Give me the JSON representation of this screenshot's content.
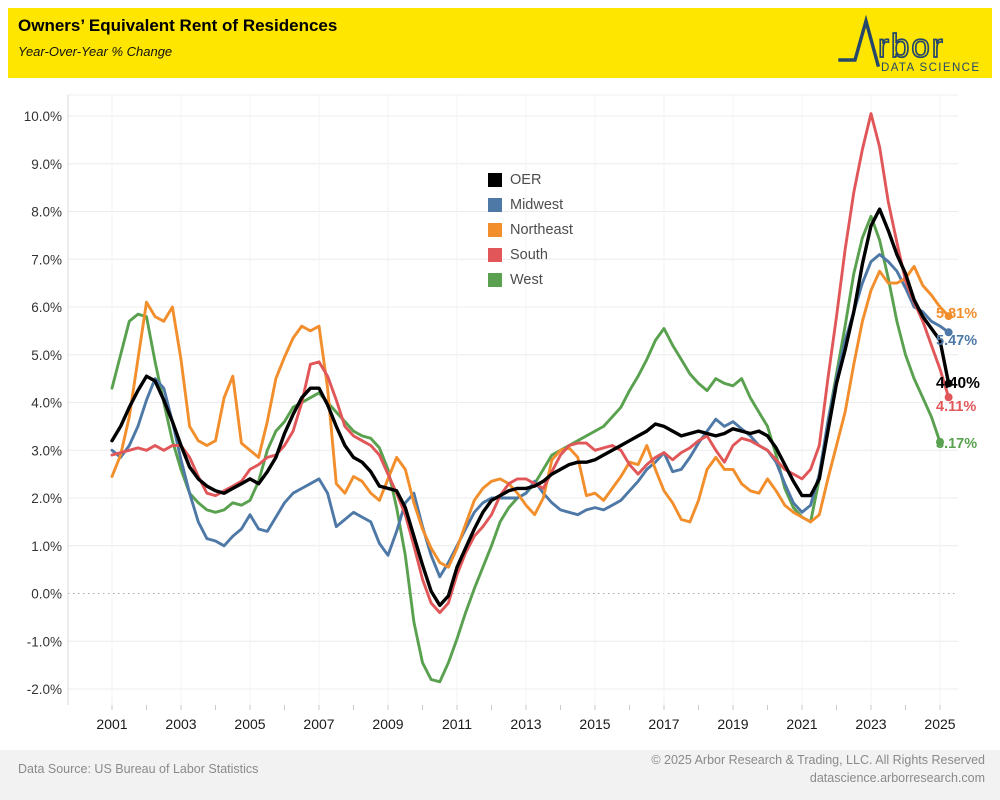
{
  "header": {
    "title": "Owners’ Equivalent Rent of Residences",
    "subtitle": "Year-Over-Year % Change"
  },
  "logo": {
    "word": "rbor",
    "tagline": "DATA SCIENCE",
    "navy": "#24476B",
    "banner_yellow": "#FFE600"
  },
  "footer": {
    "source": "Data Source: US Bureau of Labor Statistics",
    "copyright": "© 2025 Arbor Research & Trading, LLC. All Rights Reserved",
    "website": "datascience.arborresearch.com"
  },
  "chart_data": {
    "type": "line",
    "title": "Owners’ Equivalent Rent of Residences",
    "ylabel": "Year-Over-Year % Change",
    "ylim": [
      -2.0,
      10.0
    ],
    "ytick_step": 1.0,
    "x_start": 2001.0,
    "x_step": 0.25,
    "xticks_labeled": [
      2001,
      2003,
      2005,
      2007,
      2009,
      2011,
      2013,
      2015,
      2017,
      2019,
      2021,
      2023,
      2025
    ],
    "xticks_minor_every_year": true,
    "grid": true,
    "zero_line_dotted": true,
    "legend_position": "inside-top-center",
    "draw_order": [
      4,
      1,
      2,
      3,
      0
    ],
    "series": [
      {
        "name": "OER",
        "color": "#000000",
        "stroke": 3.4,
        "end_label": "4.40%",
        "label_dy": 1,
        "label_size": 15.5,
        "values": [
          3.2,
          3.5,
          3.9,
          4.25,
          4.55,
          4.45,
          4.05,
          3.6,
          3.1,
          2.65,
          2.4,
          2.25,
          2.15,
          2.1,
          2.2,
          2.3,
          2.4,
          2.3,
          2.55,
          2.85,
          3.35,
          3.75,
          4.1,
          4.3,
          4.3,
          3.95,
          3.5,
          3.1,
          2.85,
          2.75,
          2.55,
          2.25,
          2.2,
          2.15,
          1.8,
          1.2,
          0.6,
          0.05,
          -0.25,
          -0.05,
          0.55,
          0.95,
          1.35,
          1.7,
          1.95,
          2.05,
          2.15,
          2.2,
          2.2,
          2.25,
          2.35,
          2.5,
          2.6,
          2.7,
          2.75,
          2.75,
          2.8,
          2.9,
          3.0,
          3.1,
          3.2,
          3.3,
          3.4,
          3.55,
          3.5,
          3.4,
          3.3,
          3.35,
          3.4,
          3.35,
          3.3,
          3.35,
          3.45,
          3.4,
          3.35,
          3.4,
          3.3,
          3.05,
          2.7,
          2.35,
          2.05,
          2.05,
          2.4,
          3.4,
          4.4,
          5.1,
          5.9,
          6.9,
          7.7,
          8.05,
          7.6,
          7.1,
          6.7,
          6.15,
          5.8,
          5.55,
          5.3,
          4.4
        ]
      },
      {
        "name": "Midwest",
        "color": "#4e79a7",
        "stroke": 2.9,
        "end_label": "5.47%",
        "label_dy": 10,
        "label_size": 14.5,
        "values": [
          3.0,
          2.85,
          3.1,
          3.5,
          4.05,
          4.5,
          4.3,
          3.6,
          2.8,
          2.1,
          1.5,
          1.15,
          1.1,
          1.0,
          1.2,
          1.35,
          1.65,
          1.35,
          1.3,
          1.6,
          1.9,
          2.1,
          2.2,
          2.3,
          2.4,
          2.1,
          1.4,
          1.55,
          1.7,
          1.6,
          1.5,
          1.05,
          0.8,
          1.3,
          1.9,
          2.1,
          1.4,
          0.8,
          0.35,
          0.65,
          1.0,
          1.35,
          1.7,
          1.9,
          2.0,
          2.0,
          2.0,
          2.0,
          2.1,
          2.35,
          2.1,
          1.9,
          1.75,
          1.7,
          1.65,
          1.75,
          1.8,
          1.75,
          1.85,
          1.95,
          2.15,
          2.35,
          2.6,
          2.75,
          2.95,
          2.55,
          2.6,
          2.85,
          3.15,
          3.4,
          3.65,
          3.5,
          3.6,
          3.45,
          3.3,
          3.1,
          3.0,
          2.75,
          2.3,
          1.9,
          1.7,
          1.85,
          2.5,
          3.6,
          4.5,
          5.3,
          5.9,
          6.5,
          6.95,
          7.1,
          6.95,
          6.75,
          6.4,
          6.0,
          5.9,
          5.7,
          5.6,
          5.47
        ]
      },
      {
        "name": "Northeast",
        "color": "#f28e2b",
        "stroke": 2.9,
        "end_label": "5.81%",
        "label_dy": -1,
        "label_size": 14.5,
        "values": [
          2.45,
          2.9,
          3.7,
          4.9,
          6.1,
          5.8,
          5.7,
          6.0,
          4.9,
          3.5,
          3.2,
          3.1,
          3.2,
          4.1,
          4.55,
          3.15,
          3.0,
          2.85,
          3.6,
          4.5,
          4.95,
          5.35,
          5.6,
          5.5,
          5.6,
          4.3,
          2.3,
          2.1,
          2.45,
          2.35,
          2.1,
          1.95,
          2.4,
          2.85,
          2.6,
          1.9,
          1.35,
          0.95,
          0.65,
          0.55,
          0.95,
          1.45,
          1.95,
          2.2,
          2.35,
          2.4,
          2.3,
          2.1,
          1.85,
          1.65,
          2.0,
          2.8,
          3.0,
          3.05,
          2.85,
          2.05,
          2.1,
          1.95,
          2.2,
          2.45,
          2.75,
          2.7,
          3.1,
          2.6,
          2.15,
          1.9,
          1.55,
          1.5,
          1.95,
          2.6,
          2.85,
          2.6,
          2.6,
          2.3,
          2.15,
          2.1,
          2.4,
          2.15,
          1.85,
          1.7,
          1.6,
          1.5,
          1.65,
          2.4,
          3.1,
          3.8,
          4.8,
          5.7,
          6.35,
          6.75,
          6.5,
          6.5,
          6.6,
          6.85,
          6.45,
          6.25,
          6.0,
          5.81
        ]
      },
      {
        "name": "South",
        "color": "#e15759",
        "stroke": 2.9,
        "end_label": "4.11%",
        "label_dy": 11,
        "label_size": 14.5,
        "values": [
          2.9,
          2.95,
          3.0,
          3.05,
          3.0,
          3.1,
          3.0,
          3.1,
          3.1,
          2.85,
          2.45,
          2.1,
          2.05,
          2.15,
          2.25,
          2.35,
          2.6,
          2.7,
          2.85,
          2.9,
          3.1,
          3.4,
          4.0,
          4.8,
          4.85,
          4.55,
          4.05,
          3.5,
          3.3,
          3.2,
          3.1,
          2.9,
          2.5,
          2.1,
          1.65,
          1.0,
          0.3,
          -0.2,
          -0.4,
          -0.2,
          0.4,
          0.85,
          1.2,
          1.4,
          1.65,
          2.05,
          2.3,
          2.4,
          2.4,
          2.3,
          2.2,
          2.55,
          2.9,
          3.1,
          3.15,
          3.15,
          3.0,
          3.05,
          3.1,
          3.0,
          2.7,
          2.5,
          2.7,
          2.85,
          2.95,
          2.8,
          2.95,
          3.05,
          3.2,
          3.3,
          3.0,
          2.75,
          3.1,
          3.25,
          3.2,
          3.1,
          3.0,
          2.8,
          2.6,
          2.5,
          2.4,
          2.6,
          3.1,
          4.5,
          5.8,
          7.2,
          8.4,
          9.3,
          10.05,
          9.35,
          8.2,
          7.35,
          6.55,
          6.1,
          5.7,
          5.2,
          4.7,
          4.11
        ]
      },
      {
        "name": "West",
        "color": "#59a14f",
        "stroke": 2.9,
        "end_label": "3.17%",
        "label_dy": 3,
        "label_size": 14.5,
        "values": [
          4.3,
          5.0,
          5.7,
          5.85,
          5.8,
          4.85,
          4.0,
          3.2,
          2.6,
          2.1,
          1.9,
          1.75,
          1.7,
          1.75,
          1.9,
          1.85,
          1.95,
          2.35,
          3.0,
          3.4,
          3.6,
          3.9,
          4.0,
          4.1,
          4.2,
          4.0,
          3.8,
          3.6,
          3.4,
          3.3,
          3.25,
          3.05,
          2.6,
          1.8,
          0.8,
          -0.6,
          -1.45,
          -1.8,
          -1.85,
          -1.45,
          -0.95,
          -0.4,
          0.1,
          0.55,
          1.0,
          1.5,
          1.8,
          2.0,
          2.1,
          2.3,
          2.6,
          2.9,
          3.0,
          3.1,
          3.2,
          3.3,
          3.4,
          3.5,
          3.7,
          3.9,
          4.25,
          4.55,
          4.9,
          5.3,
          5.55,
          5.2,
          4.9,
          4.6,
          4.4,
          4.25,
          4.5,
          4.4,
          4.35,
          4.5,
          4.1,
          3.8,
          3.5,
          2.9,
          2.2,
          1.8,
          1.6,
          1.5,
          2.4,
          3.6,
          4.6,
          5.6,
          6.7,
          7.45,
          7.9,
          7.4,
          6.6,
          5.7,
          5.0,
          4.5,
          4.1,
          3.7,
          3.17
        ]
      }
    ]
  }
}
